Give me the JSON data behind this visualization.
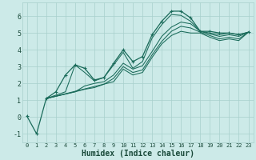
{
  "title": "",
  "xlabel": "Humidex (Indice chaleur)",
  "bg_color": "#cceae8",
  "grid_color": "#a8d0cc",
  "line_color": "#1a6b5a",
  "xlim": [
    -0.5,
    23.5
  ],
  "ylim": [
    -1.5,
    6.8
  ],
  "yticks": [
    -1,
    0,
    1,
    2,
    3,
    4,
    5,
    6
  ],
  "xticks": [
    0,
    1,
    2,
    3,
    4,
    5,
    6,
    7,
    8,
    9,
    10,
    11,
    12,
    13,
    14,
    15,
    16,
    17,
    18,
    19,
    20,
    21,
    22,
    23
  ],
  "main_line_x": [
    0,
    1,
    2,
    3,
    4,
    5,
    6,
    7,
    8,
    9,
    10,
    11,
    12,
    13,
    14,
    15,
    16,
    17,
    18,
    19,
    20,
    21,
    22,
    23
  ],
  "main_line_y": [
    0.05,
    -1.0,
    1.1,
    1.5,
    2.5,
    3.1,
    2.9,
    2.2,
    2.35,
    3.2,
    4.0,
    3.3,
    3.6,
    4.9,
    5.7,
    6.3,
    6.3,
    5.9,
    5.1,
    5.1,
    5.0,
    5.0,
    4.9,
    5.05
  ],
  "line2_x": [
    2,
    4,
    5,
    6,
    7,
    8,
    9,
    10,
    11,
    12,
    13,
    14,
    15,
    16,
    17,
    18,
    19,
    20,
    21,
    22,
    23
  ],
  "line2_y": [
    1.1,
    1.5,
    3.1,
    2.65,
    2.15,
    2.35,
    3.1,
    3.85,
    2.9,
    3.3,
    4.7,
    5.5,
    6.1,
    6.05,
    5.7,
    5.1,
    5.0,
    4.9,
    5.0,
    4.9,
    5.05
  ],
  "line3_x": [
    2,
    5,
    6,
    7,
    8,
    9,
    10,
    11,
    12,
    13,
    14,
    15,
    16,
    17,
    18,
    19,
    20,
    21,
    22,
    23
  ],
  "line3_y": [
    1.1,
    1.5,
    1.85,
    2.0,
    2.1,
    2.5,
    3.2,
    2.85,
    3.05,
    3.9,
    4.8,
    5.35,
    5.65,
    5.55,
    5.1,
    4.95,
    4.8,
    4.9,
    4.8,
    5.05
  ],
  "line4_x": [
    2,
    5,
    6,
    7,
    8,
    9,
    10,
    11,
    12,
    13,
    14,
    15,
    16,
    17,
    18,
    19,
    20,
    21,
    22,
    23
  ],
  "line4_y": [
    1.1,
    1.5,
    1.65,
    1.75,
    1.95,
    2.3,
    3.0,
    2.65,
    2.8,
    3.7,
    4.5,
    5.1,
    5.4,
    5.3,
    5.05,
    4.85,
    4.65,
    4.75,
    4.65,
    5.05
  ],
  "line5_x": [
    2,
    9,
    10,
    11,
    12,
    13,
    14,
    15,
    16,
    17,
    18,
    19,
    20,
    21,
    22,
    23
  ],
  "line5_y": [
    1.1,
    2.1,
    2.85,
    2.5,
    2.65,
    3.55,
    4.35,
    4.85,
    5.1,
    5.0,
    5.0,
    4.75,
    4.55,
    4.65,
    4.55,
    5.05
  ]
}
